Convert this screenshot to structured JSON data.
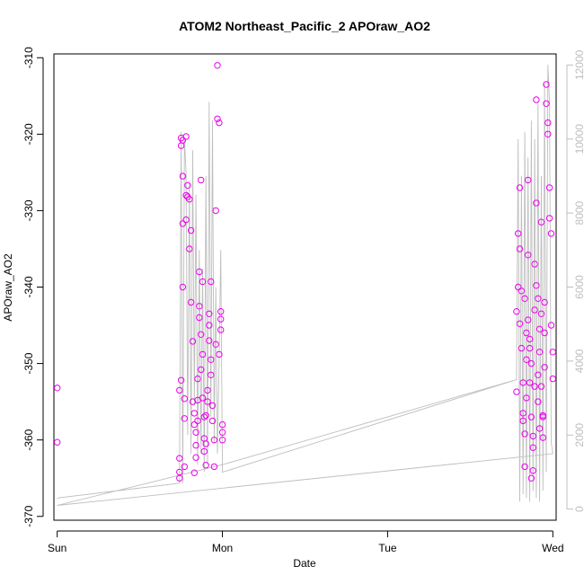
{
  "chart_data": {
    "type": "scatter",
    "title": "ATOM2 Northeast_Pacific_2 APOraw_AO2",
    "xlabel": "Date",
    "ylabel": "APOraw_AO2",
    "x_unit": "days since Sunday 00:00",
    "xlim": [
      -0.02,
      3.02
    ],
    "ylim": [
      -370.5,
      -309.5
    ],
    "y_ticks": [
      -370,
      -360,
      -350,
      -340,
      -330,
      -320,
      -310
    ],
    "x_ticks": [
      0,
      1,
      2,
      3
    ],
    "x_tick_labels": [
      "Sun",
      "Mon",
      "Tue",
      "Wed"
    ],
    "grid": false,
    "legend": "none",
    "secondary_axis": {
      "side": "right",
      "ylim": [
        -300,
        12300
      ],
      "ticks": [
        0,
        2000,
        4000,
        6000,
        8000,
        10000,
        12000
      ],
      "color": "#bebebe"
    },
    "series": [
      {
        "kind": "points",
        "marker": "open-circle",
        "color": "#ee00ee",
        "x": [
          0.0,
          0.0,
          0.74,
          0.74,
          0.74,
          0.74,
          0.75,
          0.75,
          0.75,
          0.76,
          0.76,
          0.76,
          0.76,
          0.77,
          0.77,
          0.77,
          0.78,
          0.78,
          0.78,
          0.79,
          0.79,
          0.8,
          0.8,
          0.81,
          0.81,
          0.82,
          0.82,
          0.83,
          0.83,
          0.83,
          0.84,
          0.84,
          0.84,
          0.85,
          0.85,
          0.85,
          0.86,
          0.86,
          0.86,
          0.87,
          0.87,
          0.87,
          0.88,
          0.88,
          0.88,
          0.89,
          0.89,
          0.89,
          0.9,
          0.9,
          0.9,
          0.91,
          0.91,
          0.92,
          0.92,
          0.92,
          0.93,
          0.93,
          0.93,
          0.94,
          0.94,
          0.95,
          0.95,
          0.96,
          0.96,
          0.97,
          0.97,
          0.98,
          0.98,
          0.99,
          0.99,
          0.99,
          1.0,
          1.0,
          1.0,
          2.78,
          2.78,
          2.79,
          2.79,
          2.8,
          2.8,
          2.8,
          2.81,
          2.81,
          2.82,
          2.82,
          2.82,
          2.83,
          2.83,
          2.83,
          2.84,
          2.84,
          2.84,
          2.85,
          2.85,
          2.85,
          2.86,
          2.86,
          2.86,
          2.87,
          2.87,
          2.87,
          2.88,
          2.88,
          2.88,
          2.89,
          2.89,
          2.89,
          2.9,
          2.9,
          2.9,
          2.91,
          2.91,
          2.91,
          2.92,
          2.92,
          2.92,
          2.93,
          2.93,
          2.93,
          2.94,
          2.94,
          2.94,
          2.95,
          2.95,
          2.95,
          2.96,
          2.96,
          2.97,
          2.97,
          2.98,
          2.98,
          2.99,
          2.99,
          3.0,
          3.0
        ],
        "y": [
          -353.2,
          -360.3,
          -362.4,
          -364.2,
          -365.0,
          -353.5,
          -320.5,
          -352.2,
          -321.5,
          -320.8,
          -325.5,
          -331.7,
          -340.0,
          -354.6,
          -357.2,
          -363.5,
          -320.3,
          -328.0,
          -331.2,
          -326.7,
          -328.2,
          -335.0,
          -328.5,
          -332.6,
          -342.0,
          -347.1,
          -355.0,
          -356.5,
          -358.0,
          -364.3,
          -362.3,
          -360.7,
          -359.0,
          -357.5,
          -354.8,
          -352.0,
          -344.0,
          -342.5,
          -338.0,
          -350.8,
          -346.2,
          -326.0,
          -339.3,
          -348.8,
          -354.5,
          -357.0,
          -359.8,
          -361.5,
          -363.3,
          -360.5,
          -356.8,
          -355.0,
          -353.5,
          -347.0,
          -345.0,
          -343.5,
          -339.3,
          -349.5,
          -351.5,
          -355.5,
          -357.5,
          -360.0,
          -363.5,
          -347.5,
          -330.0,
          -318.0,
          -311.0,
          -318.5,
          -348.8,
          -345.6,
          -343.2,
          -344.2,
          -358.0,
          -359.0,
          -360.0,
          -353.7,
          -343.2,
          -333.0,
          -340.0,
          -327.0,
          -335.0,
          -344.8,
          -340.5,
          -348.0,
          -352.5,
          -356.5,
          -357.5,
          -359.2,
          -363.5,
          -341.5,
          -346.0,
          -349.5,
          -354.5,
          -326.0,
          -335.8,
          -344.3,
          -346.8,
          -348.0,
          -352.5,
          -350.0,
          -357.0,
          -365.0,
          -359.5,
          -361.0,
          -364.0,
          -337.0,
          -343.0,
          -353.0,
          -315.5,
          -329.0,
          -339.8,
          -341.5,
          -351.5,
          -355.0,
          -358.5,
          -345.5,
          -348.5,
          -331.5,
          -343.5,
          -353.0,
          -357.0,
          -359.7,
          -356.8,
          -350.5,
          -346.0,
          -342.0,
          -313.5,
          -316.0,
          -318.5,
          -320.0,
          -327.0,
          -331.0,
          -333.0,
          -345.0,
          -348.5,
          -352.0
        ]
      },
      {
        "kind": "line",
        "axis": "right",
        "color": "#bebebe",
        "x": [
          0.0,
          0.74,
          0.75,
          0.76,
          0.77,
          0.78,
          0.79,
          0.8,
          0.81,
          0.82,
          0.83,
          0.84,
          0.85,
          0.86,
          0.87,
          0.88,
          0.89,
          0.9,
          0.91,
          0.92,
          0.93,
          0.94,
          0.95,
          0.96,
          0.97,
          0.98,
          0.99,
          1.0,
          2.78,
          2.79,
          2.8,
          2.81,
          2.82,
          2.83,
          2.84,
          2.85,
          2.86,
          2.87,
          2.88,
          2.89,
          2.9,
          2.91,
          2.92,
          2.93,
          2.94,
          2.95,
          2.96,
          2.97,
          2.98,
          2.99,
          3.0,
          0.0,
          1.0,
          2.78
        ],
        "y": [
          300,
          700,
          10200,
          700,
          10000,
          9100,
          2000,
          8800,
          1500,
          9700,
          2800,
          8500,
          1200,
          7000,
          1500,
          6500,
          1000,
          9000,
          1200,
          11000,
          2500,
          10500,
          1800,
          6000,
          1500,
          4000,
          7000,
          1000,
          3500,
          10000,
          200,
          9000,
          400,
          10200,
          300,
          9500,
          200,
          10500,
          500,
          10000,
          300,
          11000,
          200,
          9000,
          500,
          11500,
          1000,
          12000,
          11000,
          1800,
          1500,
          100,
          1200,
          3500
        ]
      }
    ]
  }
}
